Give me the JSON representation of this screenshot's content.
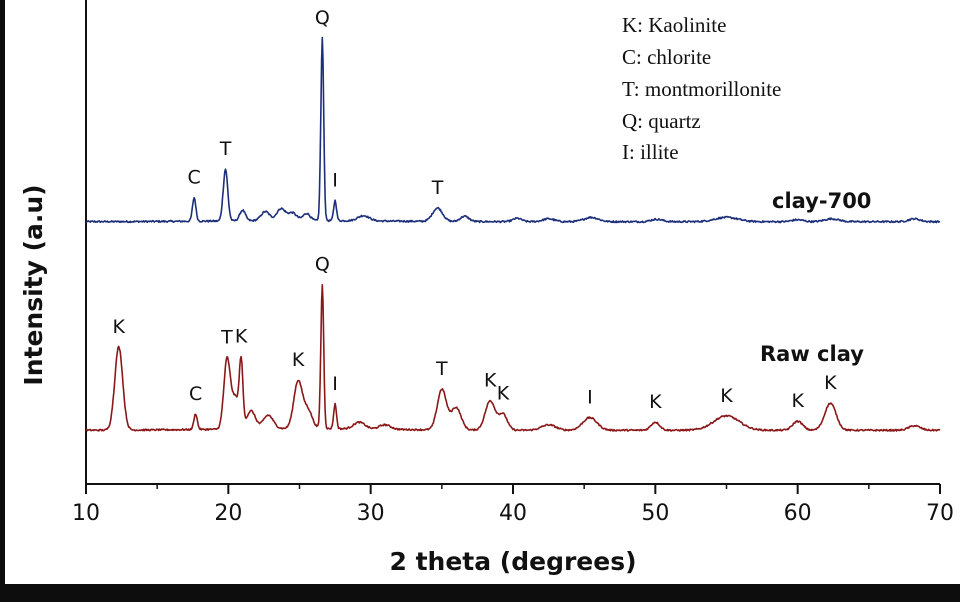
{
  "chart_data": {
    "type": "line",
    "xlabel": "2 theta (degrees)",
    "ylabel": "Intensity (a.u)",
    "xlim": [
      10,
      70
    ],
    "xticks": [
      10,
      20,
      30,
      40,
      50,
      60,
      70
    ],
    "yticks_visible": false,
    "legend": {
      "placement": "top-right",
      "entries": [
        "K: Kaolinite",
        "C: chlorite",
        "T: montmorillonite",
        "Q: quartz",
        "I: illite"
      ]
    },
    "colors": {
      "clay_700": "#1c2f7a",
      "raw_clay": "#8b1818",
      "axis": "#111111",
      "frame": "#0d0d0d"
    },
    "series": [
      {
        "name": "clay-700",
        "baseline": 0.9,
        "peaks": [
          {
            "x": 17.6,
            "y": 4.9,
            "w": 0.12,
            "label": "C"
          },
          {
            "x": 19.8,
            "y": 10.8,
            "w": 0.16,
            "label": "T"
          },
          {
            "x": 21.0,
            "y": 2.2,
            "w": 0.2
          },
          {
            "x": 22.6,
            "y": 1.9,
            "w": 0.3
          },
          {
            "x": 23.7,
            "y": 2.5,
            "w": 0.3
          },
          {
            "x": 24.5,
            "y": 1.6,
            "w": 0.3
          },
          {
            "x": 25.5,
            "y": 1.5,
            "w": 0.25
          },
          {
            "x": 26.6,
            "y": 38.0,
            "w": 0.1,
            "label": "Q"
          },
          {
            "x": 27.5,
            "y": 4.2,
            "w": 0.1,
            "label": "I"
          },
          {
            "x": 29.5,
            "y": 1.1,
            "w": 0.4
          },
          {
            "x": 34.7,
            "y": 2.8,
            "w": 0.35,
            "label": "T"
          },
          {
            "x": 36.6,
            "y": 1.1,
            "w": 0.3
          },
          {
            "x": 40.3,
            "y": 0.7,
            "w": 0.3
          },
          {
            "x": 42.5,
            "y": 0.6,
            "w": 0.4
          },
          {
            "x": 45.5,
            "y": 0.9,
            "w": 0.5
          },
          {
            "x": 50.1,
            "y": 0.5,
            "w": 0.4
          },
          {
            "x": 55.0,
            "y": 0.9,
            "w": 0.8
          },
          {
            "x": 60.0,
            "y": 0.4,
            "w": 0.4
          },
          {
            "x": 62.4,
            "y": 0.6,
            "w": 0.5
          },
          {
            "x": 68.2,
            "y": 0.6,
            "w": 0.4
          }
        ]
      },
      {
        "name": "Raw clay",
        "baseline": 1.5,
        "peaks": [
          {
            "x": 12.3,
            "y": 18.5,
            "w": 0.28,
            "label": "K"
          },
          {
            "x": 17.7,
            "y": 3.5,
            "w": 0.12,
            "label": "C"
          },
          {
            "x": 19.9,
            "y": 15.0,
            "w": 0.22,
            "label": "T"
          },
          {
            "x": 20.5,
            "y": 7.0,
            "w": 0.3
          },
          {
            "x": 20.9,
            "y": 13.0,
            "w": 0.12,
            "label": "K"
          },
          {
            "x": 21.6,
            "y": 4.0,
            "w": 0.3
          },
          {
            "x": 22.8,
            "y": 3.0,
            "w": 0.35
          },
          {
            "x": 24.9,
            "y": 10.5,
            "w": 0.3,
            "label": "K"
          },
          {
            "x": 25.6,
            "y": 4.0,
            "w": 0.3
          },
          {
            "x": 26.6,
            "y": 32.0,
            "w": 0.1,
            "label": "Q"
          },
          {
            "x": 27.5,
            "y": 5.5,
            "w": 0.1,
            "label": "I"
          },
          {
            "x": 29.2,
            "y": 1.5,
            "w": 0.4
          },
          {
            "x": 31.0,
            "y": 1.0,
            "w": 0.4
          },
          {
            "x": 35.0,
            "y": 9.0,
            "w": 0.32,
            "label": "T"
          },
          {
            "x": 36.0,
            "y": 5.0,
            "w": 0.35
          },
          {
            "x": 38.4,
            "y": 6.5,
            "w": 0.35,
            "label": "K"
          },
          {
            "x": 39.3,
            "y": 3.5,
            "w": 0.3,
            "label": "K"
          },
          {
            "x": 42.5,
            "y": 1.2,
            "w": 0.5
          },
          {
            "x": 45.4,
            "y": 2.8,
            "w": 0.5,
            "label": "I"
          },
          {
            "x": 50.0,
            "y": 1.8,
            "w": 0.3,
            "label": "K"
          },
          {
            "x": 55.0,
            "y": 3.2,
            "w": 0.9,
            "label": "K"
          },
          {
            "x": 60.0,
            "y": 2.0,
            "w": 0.35,
            "label": "K"
          },
          {
            "x": 62.3,
            "y": 6.0,
            "w": 0.4,
            "label": "K"
          },
          {
            "x": 68.2,
            "y": 1.0,
            "w": 0.4
          }
        ]
      }
    ]
  }
}
